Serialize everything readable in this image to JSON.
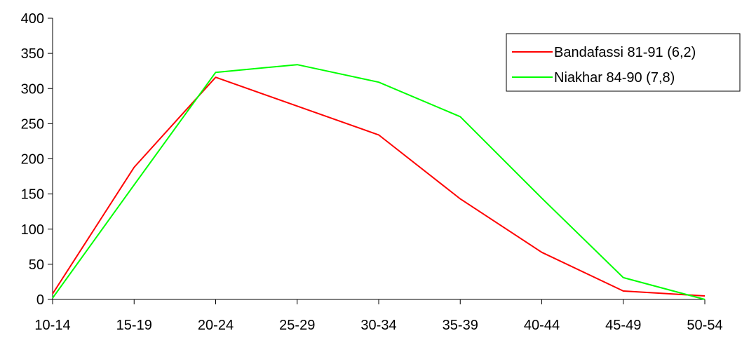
{
  "chart_data": {
    "type": "line",
    "title": "",
    "xlabel": "",
    "ylabel": "",
    "categories": [
      "10-14",
      "15-19",
      "20-24",
      "25-29",
      "30-34",
      "35-39",
      "40-44",
      "45-49",
      "50-54"
    ],
    "ylim": [
      0,
      400
    ],
    "yticks": [
      0,
      50,
      100,
      150,
      200,
      250,
      300,
      350,
      400
    ],
    "grid": false,
    "legend_position": "top-right",
    "series": [
      {
        "name": "Bandafassi 81-91 (6,2)",
        "color": "#ff0000",
        "values": [
          8,
          188,
          316,
          275,
          234,
          143,
          67,
          12,
          5
        ]
      },
      {
        "name": "Niakhar 84-90 (7,8)",
        "color": "#00ff00",
        "values": [
          2,
          163,
          323,
          334,
          309,
          260,
          144,
          31,
          0
        ]
      }
    ]
  }
}
